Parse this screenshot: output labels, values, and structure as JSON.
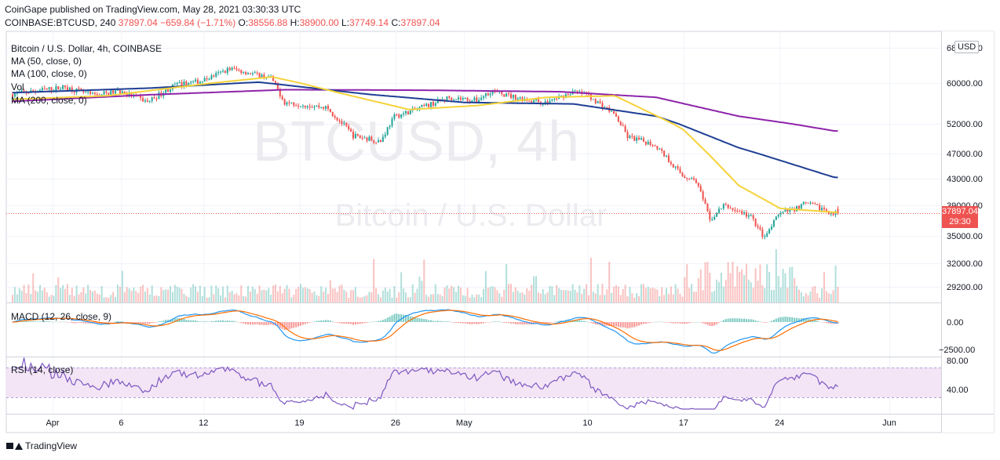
{
  "header": {
    "published": "CoinGape published on TradingView.com, May 28, 2021 03:30:33 UTC",
    "symbol_line": "COINBASE:BTCUSD, 240",
    "last": "37897.04",
    "change": "−659.84 (−1.71%)",
    "o_label": "O:",
    "o_value": "38556.88",
    "h_label": "H:",
    "h_value": "38900.00",
    "l_label": "L:",
    "l_value": "37749.14",
    "c_label": "C:",
    "c_value": "37897.04"
  },
  "legends": {
    "title": "Bitcoin / U.S. Dollar, 4h, COINBASE",
    "ma50": "MA (50, close, 0)",
    "ma100": "MA (100, close, 0)",
    "vol": "Vol",
    "ma200": "MA (200, close, 0)",
    "macd": "MACD (12, 26, close, 9)",
    "rsi": "RSI (14, close)"
  },
  "watermark": {
    "symbol": "BTCUSD, 4h",
    "name": "Bitcoin / U.S. Dollar"
  },
  "price_badge": {
    "currency": "USD",
    "price": "37897.04",
    "countdown": "29:30"
  },
  "footer": {
    "brand": "TradingView"
  },
  "colors": {
    "up": "#26a69a",
    "down": "#ef5350",
    "ma50": "#f5d33a",
    "ma100": "#1f3f94",
    "ma200": "#8e24aa",
    "macd_line": "#2196f3",
    "signal_line": "#ff6d00",
    "rsi_line": "#7e57c2",
    "rsi_band": "#f3e5f5"
  },
  "chart_data": {
    "type": "candlestick",
    "y_axis_price": [
      "68000.00",
      "60000.00",
      "52000.00",
      "47000.00",
      "43000.00",
      "39000.00",
      "35000.00",
      "32000.00",
      "29200.00"
    ],
    "y_axis_macd": [
      "0.00",
      "−2500.00"
    ],
    "y_axis_rsi": [
      "80.00",
      "40.00"
    ],
    "x_labels": [
      "Apr",
      "6",
      "12",
      "19",
      "26",
      "May",
      "10",
      "17",
      "24",
      "Jun"
    ],
    "price_anchors": [
      [
        "2021-03-29",
        57800
      ],
      [
        "2021-03-31",
        58500
      ],
      [
        "2021-04-02",
        59200
      ],
      [
        "2021-04-04",
        57600
      ],
      [
        "2021-04-06",
        58400
      ],
      [
        "2021-04-08",
        56300
      ],
      [
        "2021-04-10",
        59600
      ],
      [
        "2021-04-12",
        60500
      ],
      [
        "2021-04-14",
        63300
      ],
      [
        "2021-04-15",
        62600
      ],
      [
        "2021-04-17",
        61200
      ],
      [
        "2021-04-18",
        56200
      ],
      [
        "2021-04-19",
        55900
      ],
      [
        "2021-04-21",
        55200
      ],
      [
        "2021-04-23",
        50000
      ],
      [
        "2021-04-25",
        49100
      ],
      [
        "2021-04-26",
        53400
      ],
      [
        "2021-04-28",
        55200
      ],
      [
        "2021-04-30",
        57200
      ],
      [
        "2021-05-02",
        56600
      ],
      [
        "2021-05-03",
        58400
      ],
      [
        "2021-05-05",
        57100
      ],
      [
        "2021-05-07",
        56100
      ],
      [
        "2021-05-09",
        58300
      ],
      [
        "2021-05-10",
        57800
      ],
      [
        "2021-05-12",
        54000
      ],
      [
        "2021-05-13",
        49800
      ],
      [
        "2021-05-15",
        48500
      ],
      [
        "2021-05-17",
        43500
      ],
      [
        "2021-05-18",
        42700
      ],
      [
        "2021-05-19",
        37000
      ],
      [
        "2021-05-20",
        39000
      ],
      [
        "2021-05-22",
        37500
      ],
      [
        "2021-05-23",
        34700
      ],
      [
        "2021-05-24",
        37800
      ],
      [
        "2021-05-25",
        38400
      ],
      [
        "2021-05-26",
        39300
      ],
      [
        "2021-05-27",
        38700
      ],
      [
        "2021-05-28",
        37897.04
      ]
    ],
    "ma50_anchors": [
      [
        "2021-03-29",
        56800
      ],
      [
        "2021-04-05",
        57500
      ],
      [
        "2021-04-12",
        59800
      ],
      [
        "2021-04-17",
        61400
      ],
      [
        "2021-04-22",
        58000
      ],
      [
        "2021-04-27",
        54800
      ],
      [
        "2021-05-02",
        55600
      ],
      [
        "2021-05-07",
        57200
      ],
      [
        "2021-05-12",
        57500
      ],
      [
        "2021-05-17",
        51000
      ],
      [
        "2021-05-21",
        42000
      ],
      [
        "2021-05-24",
        38600
      ],
      [
        "2021-05-28",
        38100
      ]
    ],
    "ma100_anchors": [
      [
        "2021-03-29",
        58100
      ],
      [
        "2021-04-08",
        59000
      ],
      [
        "2021-04-16",
        60200
      ],
      [
        "2021-04-24",
        57800
      ],
      [
        "2021-05-01",
        56200
      ],
      [
        "2021-05-09",
        55900
      ],
      [
        "2021-05-15",
        53500
      ],
      [
        "2021-05-21",
        48000
      ],
      [
        "2021-05-28",
        43200
      ]
    ],
    "ma200_anchors": [
      [
        "2021-03-29",
        56400
      ],
      [
        "2021-04-08",
        57700
      ],
      [
        "2021-04-18",
        58700
      ],
      [
        "2021-04-28",
        58600
      ],
      [
        "2021-05-08",
        58300
      ],
      [
        "2021-05-15",
        57200
      ],
      [
        "2021-05-21",
        53500
      ],
      [
        "2021-05-28",
        50800
      ]
    ]
  }
}
